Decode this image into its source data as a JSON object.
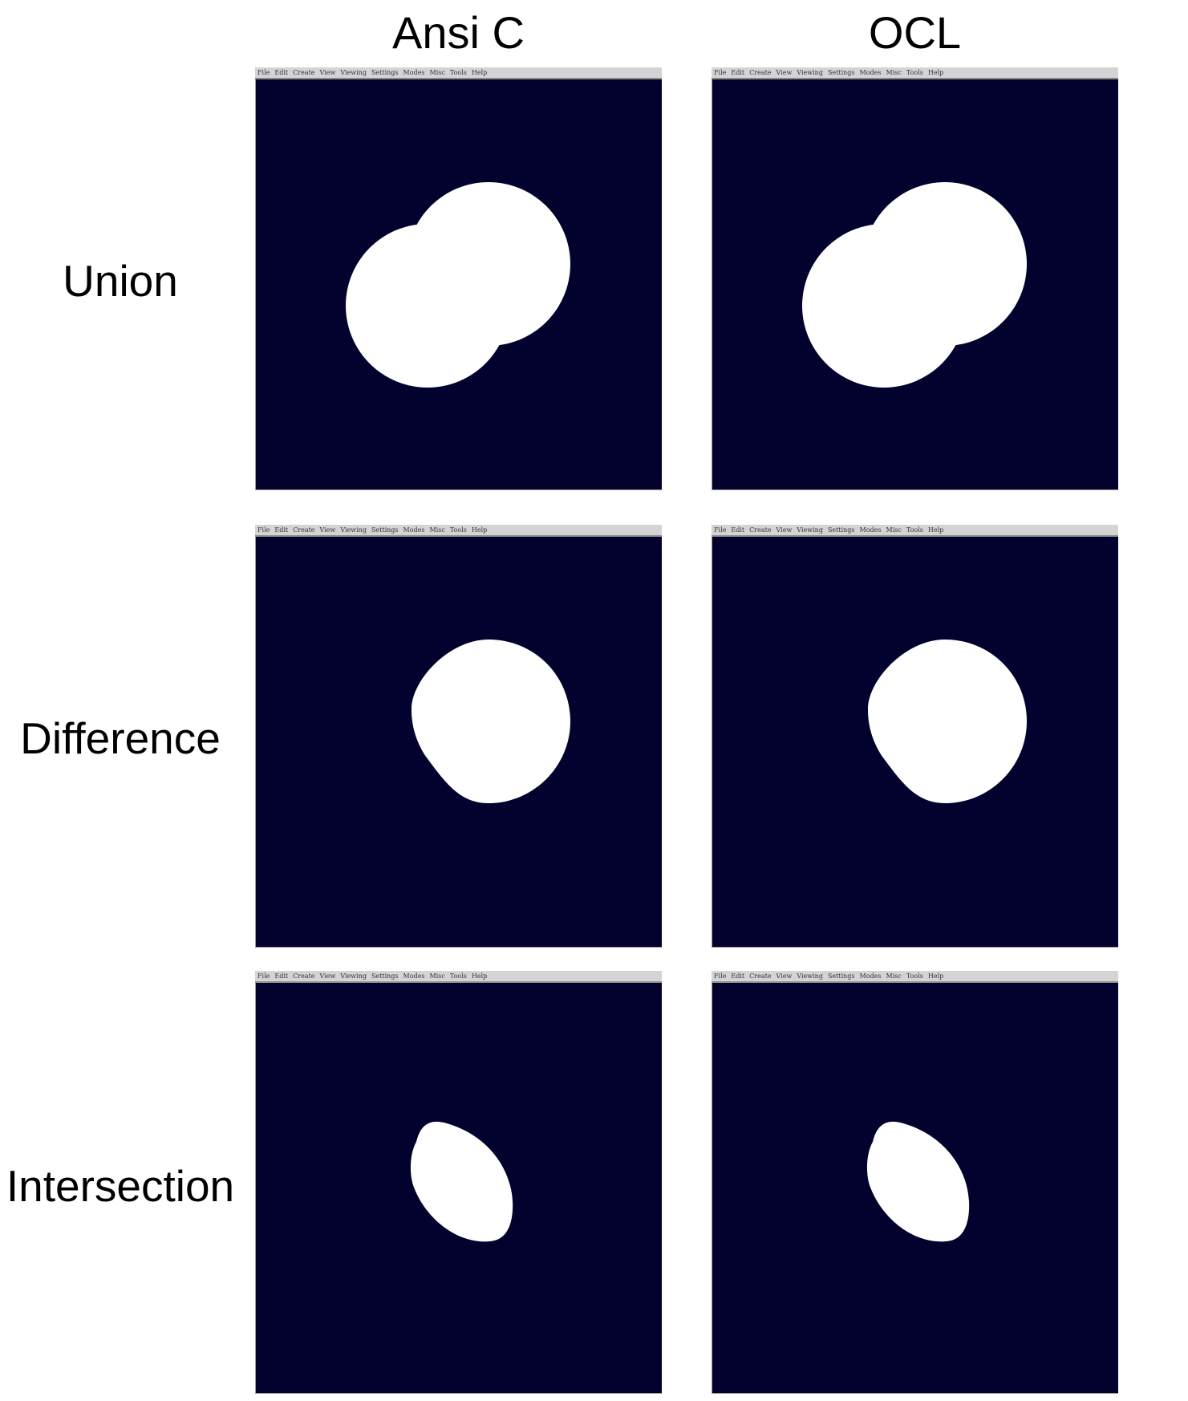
{
  "columns": {
    "left": "Ansi C",
    "right": "OCL"
  },
  "rows": {
    "union": "Union",
    "difference": "Difference",
    "intersection": "Intersection"
  },
  "menu": [
    "File",
    "Edit",
    "Create",
    "View",
    "Viewing",
    "Settings",
    "Modes",
    "Misc",
    "Tools",
    "Help"
  ],
  "colors": {
    "viewport_background": "#03022e",
    "shape_fill": "#ffffff",
    "menubar": "#d4d4d4"
  }
}
